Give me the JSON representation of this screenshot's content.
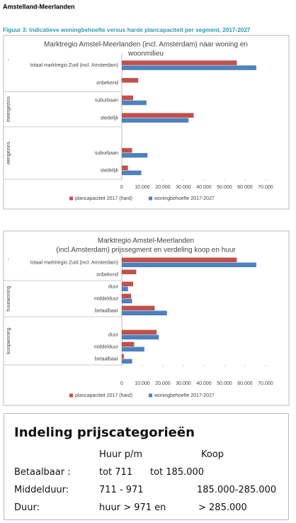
{
  "header": {
    "region": "Amstelland-Meerlanden",
    "figure_title": "Figuur 3: Indicatieve woningbehoefte versus harde plancapaciteit per segment, 2017-2027"
  },
  "chart_data": [
    {
      "type": "bar",
      "orientation": "horizontal",
      "title": [
        "Marktregio Amstel-Meerlanden (incl. Amsterdam) naar woning en",
        "woonmilieu"
      ],
      "groups": [
        {
          "name": "-",
          "categories": [
            "totaal marktregio Zuid (incl. Amsterdam)",
            "onbekend"
          ]
        },
        {
          "name": "meergezins",
          "categories": [
            "suburbaan",
            "stedelijk"
          ]
        },
        {
          "name": "eengezins",
          "categories": [
            "suburbaan",
            "stedelijk"
          ]
        }
      ],
      "series": [
        {
          "name": "plancapaciteit 2017 (hard)",
          "color": "#c0504d",
          "values": [
            56000,
            8000,
            5500,
            35000,
            5000,
            3000
          ]
        },
        {
          "name": "woningbehoefte 2017-2027",
          "color": "#4f81bd",
          "values": [
            65500,
            null,
            12000,
            32500,
            12500,
            9500
          ]
        }
      ],
      "xlim": [
        0,
        70000
      ],
      "xticks": [
        0,
        {
          "value": 10000,
          "label": "10.000"
        },
        {
          "value": 20000,
          "label": "20.000"
        },
        {
          "value": 30000,
          "label": "30.000"
        },
        {
          "value": 40000,
          "label": "40.000"
        },
        {
          "value": 50000,
          "label": "50.000"
        },
        {
          "value": 60000,
          "label": "60.000"
        },
        {
          "value": 70000,
          "label": "70.000"
        }
      ],
      "legend": "bottom"
    },
    {
      "type": "bar",
      "orientation": "horizontal",
      "title": [
        "Marktregio Amstel-Meerlanden",
        "(incl.Amsterdam) prijssegment en verdeling koop en huur"
      ],
      "groups": [
        {
          "name": "-",
          "categories": [
            "totaal marktregio Zuid (incl. Amsterdam)",
            "onbekend"
          ]
        },
        {
          "name": "huurwoning",
          "categories": [
            "duur",
            "middelduur",
            "betaalbaar"
          ]
        },
        {
          "name": "koopwoning",
          "categories": [
            "duur",
            "middelduur",
            "betaalbaar"
          ]
        }
      ],
      "series": [
        {
          "name": "plancapaciteit 2017 (hard)",
          "color": "#c0504d",
          "values": [
            56000,
            7000,
            5500,
            4500,
            16000,
            17000,
            6000,
            1000
          ]
        },
        {
          "name": "woningbehoefte 2017-2027",
          "color": "#4f81bd",
          "values": [
            65500,
            null,
            3000,
            5000,
            22000,
            18000,
            11000,
            5000
          ]
        }
      ],
      "xlim": [
        0,
        70000
      ],
      "xticks": [
        0,
        {
          "value": 10000,
          "label": "10.000"
        },
        {
          "value": 20000,
          "label": "20.000"
        },
        {
          "value": 30000,
          "label": "30.000"
        },
        {
          "value": 40000,
          "label": "40.000"
        },
        {
          "value": 50000,
          "label": "50.000"
        },
        {
          "value": 60000,
          "label": "60.000"
        },
        {
          "value": 70000,
          "label": "70.000"
        }
      ],
      "legend": "bottom"
    }
  ],
  "table": {
    "title": "Indeling prijscategorieën",
    "columns": [
      "Huur p/m",
      "Koop"
    ],
    "rows": [
      [
        "Betaalbaar :",
        "tot 711",
        "tot 185.000"
      ],
      [
        "Middelduur:",
        "711 - 971",
        "185.000-285.000"
      ],
      [
        "Duur:",
        "huur > 971 en",
        "> 285.000"
      ]
    ]
  }
}
